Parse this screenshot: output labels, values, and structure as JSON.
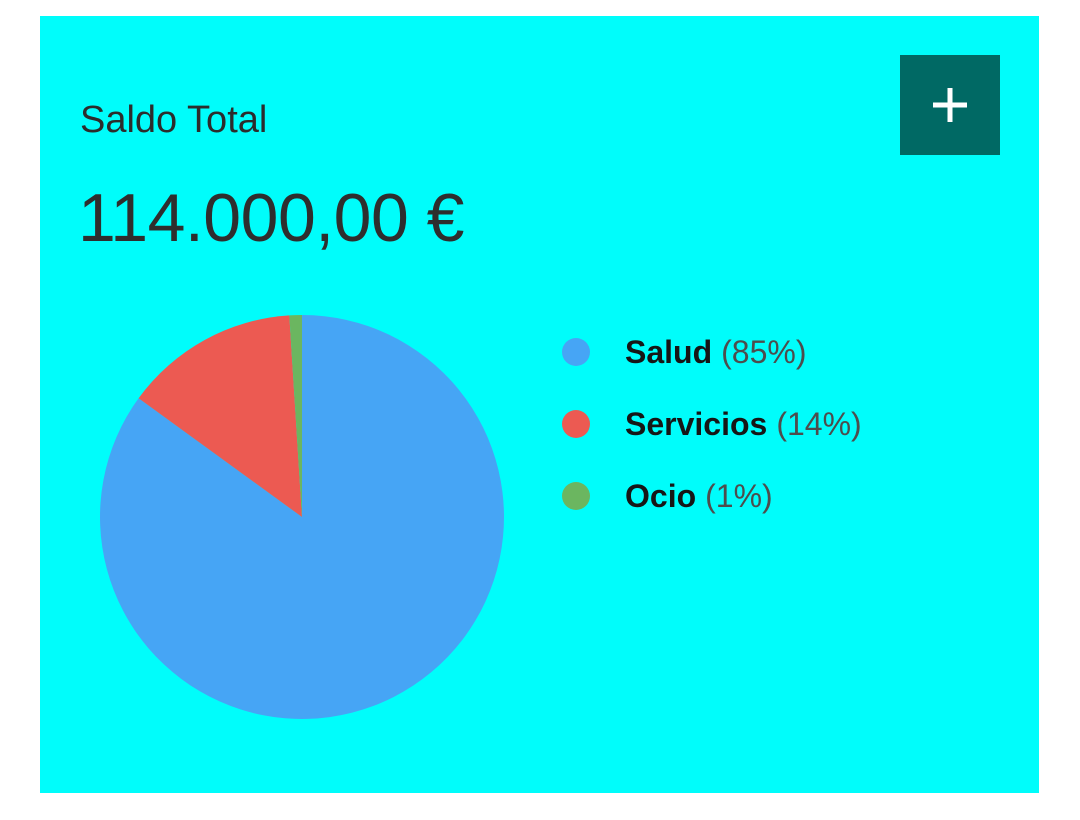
{
  "card": {
    "title": "Saldo Total",
    "amount": "114.000,00 €",
    "background": "#00fdfb"
  },
  "add_button": {
    "icon": "plus-icon",
    "color": "#006964"
  },
  "chart_data": {
    "type": "pie",
    "title": "",
    "slices": [
      {
        "label": "Salud",
        "value": 85,
        "percent_text": "(85%)",
        "color": "#46a5f5"
      },
      {
        "label": "Servicios",
        "value": 14,
        "percent_text": "(14%)",
        "color": "#ec5a52"
      },
      {
        "label": "Ocio",
        "value": 1,
        "percent_text": "(1%)",
        "color": "#6bb660"
      }
    ],
    "start_angle": "12 o'clock",
    "direction": "clockwise",
    "legend_placement": "right"
  }
}
